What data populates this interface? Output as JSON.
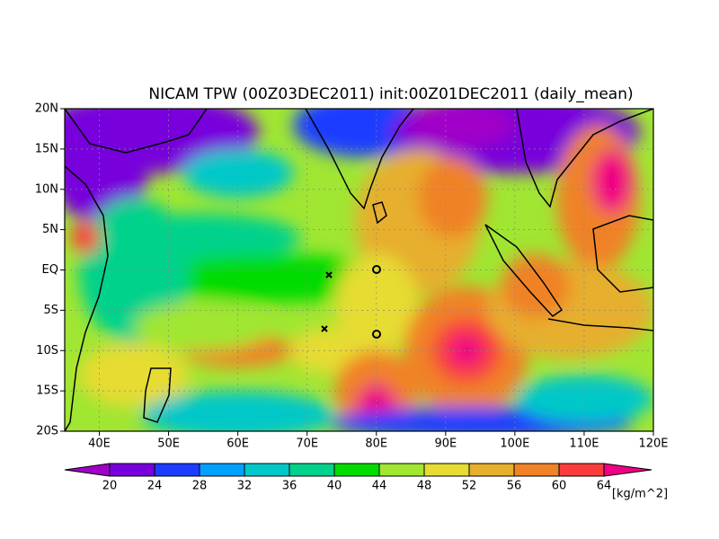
{
  "map": {
    "title": "NICAM TPW (00Z03DEC2011) init:00Z01DEC2011 (daily_mean)",
    "lon_range": [
      35,
      120
    ],
    "lat_range": [
      -20,
      20
    ],
    "lon_ticks": [
      {
        "value": 40,
        "label": "40E"
      },
      {
        "value": 50,
        "label": "50E"
      },
      {
        "value": 60,
        "label": "60E"
      },
      {
        "value": 70,
        "label": "70E"
      },
      {
        "value": 80,
        "label": "80E"
      },
      {
        "value": 90,
        "label": "90E"
      },
      {
        "value": 100,
        "label": "100E"
      },
      {
        "value": 110,
        "label": "110E"
      },
      {
        "value": 120,
        "label": "120E"
      }
    ],
    "lat_ticks": [
      {
        "value": 20,
        "label": "20N"
      },
      {
        "value": 15,
        "label": "15N"
      },
      {
        "value": 10,
        "label": "10N"
      },
      {
        "value": 5,
        "label": "5N"
      },
      {
        "value": 0,
        "label": "EQ"
      },
      {
        "value": -5,
        "label": "5S"
      },
      {
        "value": -10,
        "label": "10S"
      },
      {
        "value": -15,
        "label": "15S"
      },
      {
        "value": -20,
        "label": "20S"
      }
    ],
    "colorbar": {
      "levels": [
        20,
        24,
        28,
        32,
        36,
        40,
        44,
        48,
        52,
        56,
        60,
        64
      ],
      "colors": [
        "#a000c8",
        "#7800dc",
        "#1e3cff",
        "#00a0ff",
        "#00c8c8",
        "#00d28c",
        "#00dc00",
        "#a0e632",
        "#e6dc32",
        "#e6af2d",
        "#f08228",
        "#fa3c3c",
        "#f00082"
      ],
      "unit": "[kg/m^2]"
    }
  }
}
